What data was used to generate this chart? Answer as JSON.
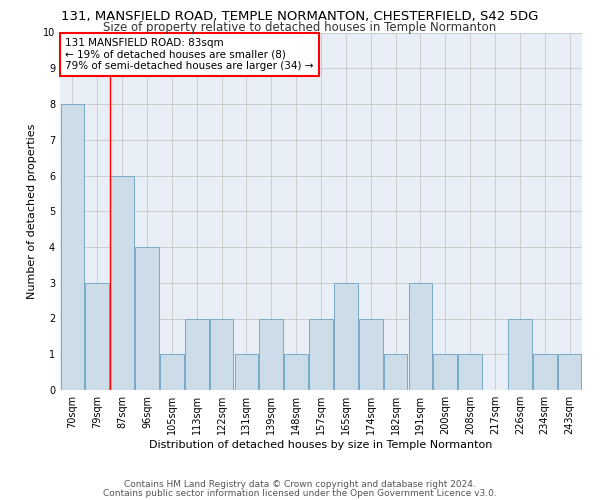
{
  "title1": "131, MANSFIELD ROAD, TEMPLE NORMANTON, CHESTERFIELD, S42 5DG",
  "title2": "Size of property relative to detached houses in Temple Normanton",
  "xlabel": "Distribution of detached houses by size in Temple Normanton",
  "ylabel": "Number of detached properties",
  "footer1": "Contains HM Land Registry data © Crown copyright and database right 2024.",
  "footer2": "Contains public sector information licensed under the Open Government Licence v3.0.",
  "categories": [
    "70sqm",
    "79sqm",
    "87sqm",
    "96sqm",
    "105sqm",
    "113sqm",
    "122sqm",
    "131sqm",
    "139sqm",
    "148sqm",
    "157sqm",
    "165sqm",
    "174sqm",
    "182sqm",
    "191sqm",
    "200sqm",
    "208sqm",
    "217sqm",
    "226sqm",
    "234sqm",
    "243sqm"
  ],
  "values": [
    8,
    3,
    6,
    4,
    1,
    2,
    2,
    1,
    2,
    1,
    2,
    3,
    2,
    1,
    3,
    1,
    1,
    0,
    2,
    1,
    1
  ],
  "bar_color": "#ccdce8",
  "bar_edge_color": "#7aaac8",
  "red_line_x": 1.5,
  "annotation_line1": "131 MANSFIELD ROAD: 83sqm",
  "annotation_line2": "← 19% of detached houses are smaller (8)",
  "annotation_line3": "79% of semi-detached houses are larger (34) →",
  "annotation_box_color": "white",
  "annotation_box_edge_color": "red",
  "ylim": [
    0,
    10
  ],
  "yticks": [
    0,
    1,
    2,
    3,
    4,
    5,
    6,
    7,
    8,
    9,
    10
  ],
  "grid_color": "#cccccc",
  "bg_color": "#e8eef5",
  "title1_fontsize": 9.5,
  "title2_fontsize": 8.5,
  "xlabel_fontsize": 8,
  "ylabel_fontsize": 8,
  "tick_fontsize": 7,
  "annotation_fontsize": 7.5,
  "footer_fontsize": 6.5
}
